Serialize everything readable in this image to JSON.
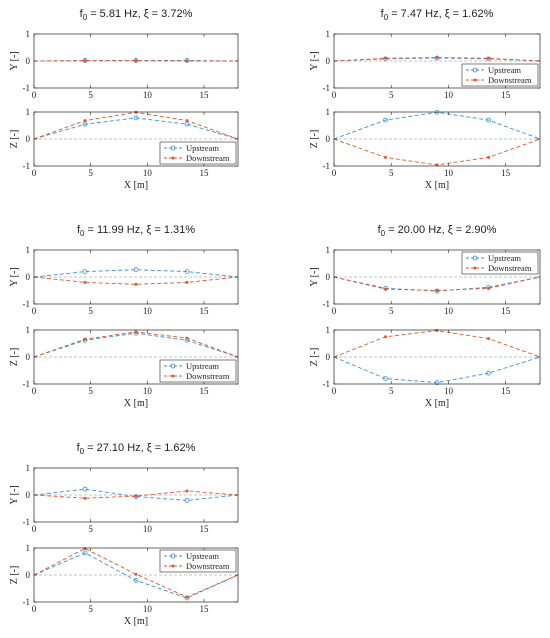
{
  "colors": {
    "upstream": "#3d8fd9",
    "downstream": "#e2572b",
    "zero": "#b0b0b0",
    "axis": "#262626"
  },
  "chart_data": [
    {
      "type": "line",
      "title_f": "f",
      "title_sub": "0",
      "title_rest": " = 5.81 Hz, ξ = 3.72%",
      "x_label": "X [m]",
      "y_label": "Y [-]",
      "z_label": "Z [-]",
      "x_ticks": [
        "0",
        "5",
        "10",
        "15"
      ],
      "y_ticks": [
        "-1",
        "0",
        "1"
      ],
      "xlim": [
        0,
        18
      ],
      "ylim": [
        -1,
        1
      ],
      "legend_panel": "z",
      "legend_placement": "bottom-right",
      "legend": [
        "Upstream",
        "Downstream"
      ],
      "x": [
        0,
        4.5,
        9,
        13.5,
        18
      ],
      "y_upstream": [
        0,
        0.02,
        0.02,
        0.02,
        0
      ],
      "y_downstream": [
        0,
        0.01,
        0.01,
        0.0,
        0
      ],
      "z_upstream": [
        0,
        0.55,
        0.78,
        0.55,
        0
      ],
      "z_downstream": [
        0,
        0.68,
        0.99,
        0.68,
        0
      ]
    },
    {
      "type": "line",
      "title_f": "f",
      "title_sub": "0",
      "title_rest": " = 7.47 Hz, ξ = 1.62%",
      "x_label": "X [m]",
      "y_label": "Y [-]",
      "z_label": "Z [-]",
      "x_ticks": [
        "0",
        "5",
        "10",
        "15"
      ],
      "y_ticks": [
        "-1",
        "0",
        "1"
      ],
      "xlim": [
        0,
        18
      ],
      "ylim": [
        -1,
        1
      ],
      "legend_panel": "y",
      "legend_placement": "bottom-right",
      "legend": [
        "Upstream",
        "Downstream"
      ],
      "x": [
        0,
        4.5,
        9,
        13.5,
        18
      ],
      "y_upstream": [
        0,
        0.08,
        0.11,
        0.08,
        0
      ],
      "y_downstream": [
        0,
        0.1,
        0.13,
        0.1,
        0
      ],
      "z_upstream": [
        0,
        0.7,
        0.99,
        0.7,
        0
      ],
      "z_downstream": [
        0,
        -0.68,
        -0.96,
        -0.68,
        0
      ]
    },
    {
      "type": "line",
      "title_f": "f",
      "title_sub": "0",
      "title_rest": " = 11.99 Hz, ξ = 1.31%",
      "x_label": "X [m]",
      "y_label": "Y [-]",
      "z_label": "Z [-]",
      "x_ticks": [
        "0",
        "5",
        "10",
        "15"
      ],
      "y_ticks": [
        "-1",
        "0",
        "1"
      ],
      "xlim": [
        0,
        18
      ],
      "ylim": [
        -1,
        1
      ],
      "legend_panel": "z",
      "legend_placement": "bottom-right",
      "legend": [
        "Upstream",
        "Downstream"
      ],
      "x": [
        0,
        4.5,
        9,
        13.5,
        18
      ],
      "y_upstream": [
        0,
        0.2,
        0.27,
        0.2,
        0
      ],
      "y_downstream": [
        0,
        -0.2,
        -0.27,
        -0.2,
        0
      ],
      "z_upstream": [
        0,
        0.62,
        0.88,
        0.62,
        0
      ],
      "z_downstream": [
        0,
        0.66,
        0.93,
        0.7,
        0
      ]
    },
    {
      "type": "line",
      "title_f": "f",
      "title_sub": "0",
      "title_rest": " = 20.00 Hz, ξ = 2.90%",
      "x_label": "X [m]",
      "y_label": "Y [-]",
      "z_label": "Z [-]",
      "x_ticks": [
        "0",
        "5",
        "10",
        "15"
      ],
      "y_ticks": [
        "-1",
        "0",
        "1"
      ],
      "xlim": [
        0,
        18
      ],
      "ylim": [
        -1,
        1
      ],
      "legend_panel": "y",
      "legend_placement": "top-right",
      "legend": [
        "Upstream",
        "Downstream"
      ],
      "x": [
        0,
        4.5,
        9,
        13.5,
        18
      ],
      "y_upstream": [
        0,
        -0.42,
        -0.52,
        -0.38,
        0
      ],
      "y_downstream": [
        0,
        -0.45,
        -0.5,
        -0.42,
        0
      ],
      "z_upstream": [
        0,
        -0.8,
        -0.95,
        -0.6,
        0
      ],
      "z_downstream": [
        0,
        0.75,
        0.98,
        0.68,
        0
      ]
    },
    {
      "type": "line",
      "title_f": "f",
      "title_sub": "0",
      "title_rest": " = 27.10 Hz, ξ = 1.62%",
      "x_label": "X [m]",
      "y_label": "Y [-]",
      "z_label": "Z [-]",
      "x_ticks": [
        "0",
        "5",
        "10",
        "15"
      ],
      "y_ticks": [
        "-1",
        "0",
        "1"
      ],
      "xlim": [
        0,
        18
      ],
      "ylim": [
        -1,
        1
      ],
      "legend_panel": "z",
      "legend_placement": "top-right",
      "legend": [
        "Upstream",
        "Downstream"
      ],
      "x": [
        0,
        4.5,
        9,
        13.5,
        18
      ],
      "y_upstream": [
        0,
        0.22,
        -0.06,
        -0.2,
        0
      ],
      "y_downstream": [
        0,
        -0.12,
        -0.04,
        0.15,
        0
      ],
      "z_upstream": [
        0,
        0.82,
        -0.2,
        -0.85,
        0
      ],
      "z_downstream": [
        0,
        0.98,
        0.03,
        -0.82,
        0
      ]
    }
  ]
}
